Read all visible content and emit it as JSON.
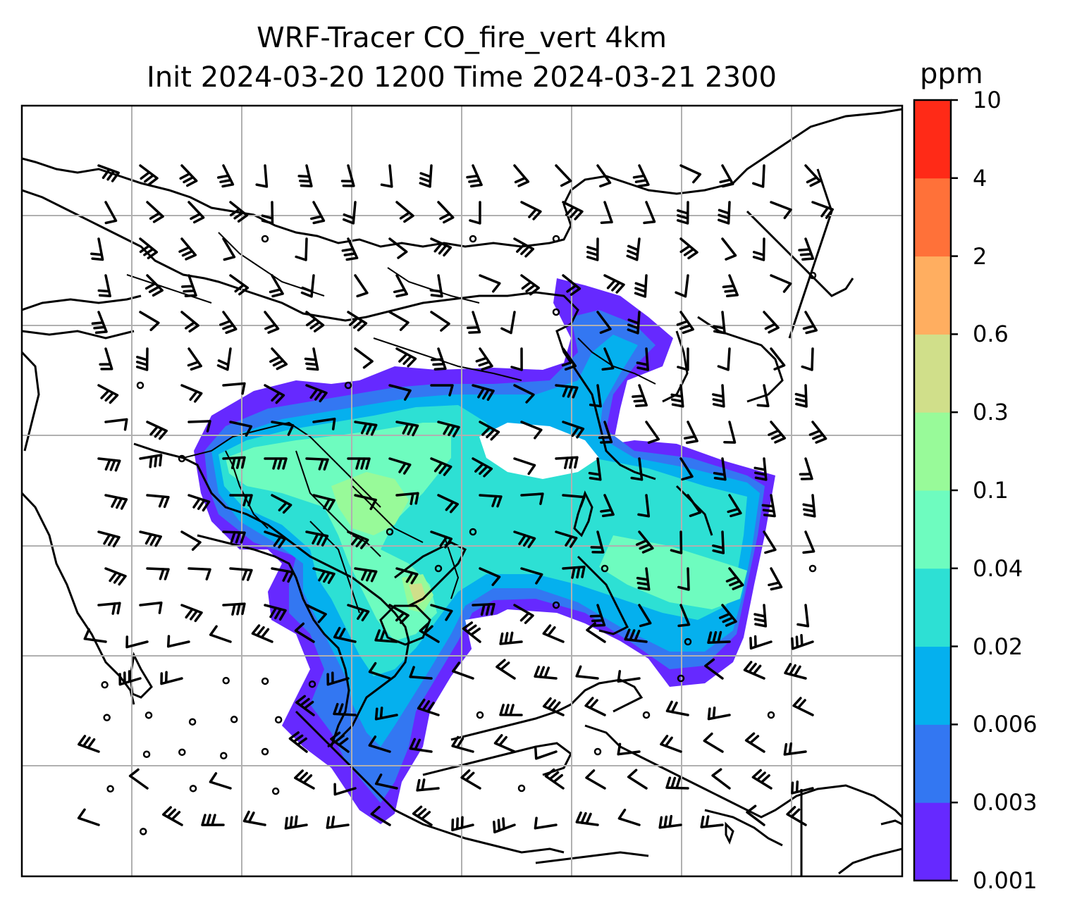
{
  "title_line1": "WRF-Tracer CO_fire_vert 4km",
  "title_line2": "Init 2024-03-20 1200 Time 2024-03-21 2300",
  "colorbar": {
    "unit": "ppm",
    "levels": [
      "0.001",
      "0.003",
      "0.006",
      "0.02",
      "0.04",
      "0.1",
      "0.3",
      "0.6",
      "2",
      "4",
      "10"
    ],
    "colors": [
      "#6629ff",
      "#3377f2",
      "#05b0ee",
      "#2de0d4",
      "#6efcbf",
      "#98fa99",
      "#d0df8a",
      "#ffae60",
      "#ff7139",
      "#ff2a17"
    ]
  },
  "map": {
    "gridlines": true,
    "field": "CO_fire_vert",
    "wind_barbs": true
  }
}
